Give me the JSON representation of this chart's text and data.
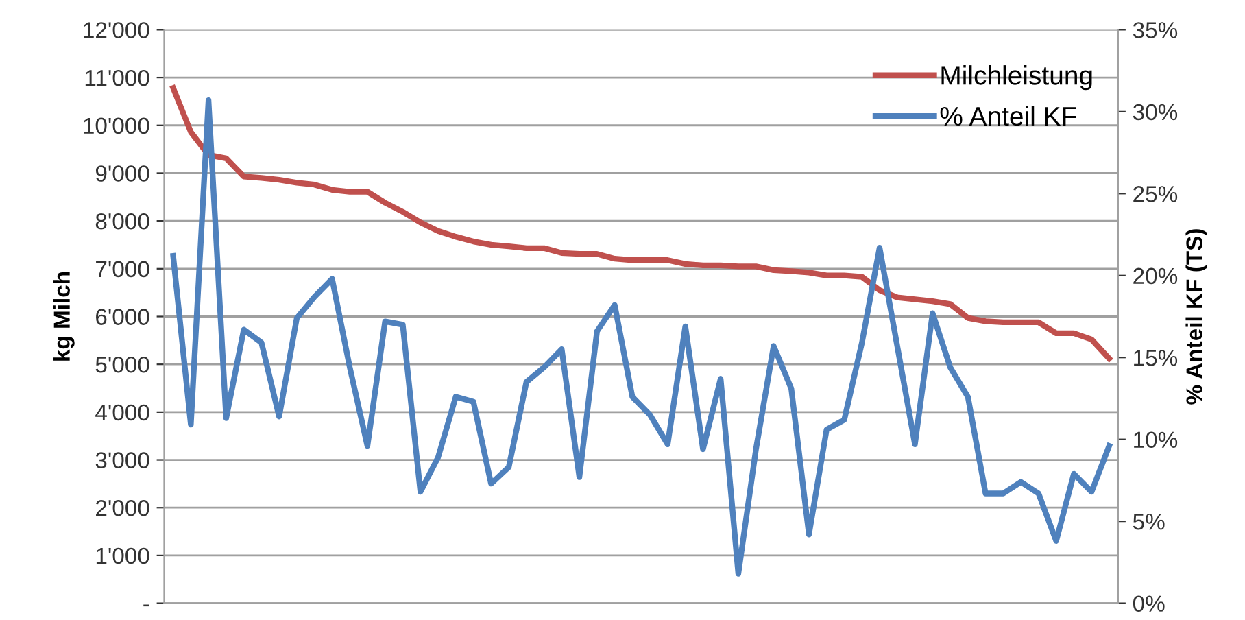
{
  "chart_data": {
    "type": "line",
    "categories": [
      null,
      null,
      null,
      null,
      null,
      null,
      null,
      null,
      null,
      null,
      null,
      null,
      null,
      null,
      null,
      null,
      null,
      null,
      null,
      null,
      null,
      null,
      null,
      null,
      null,
      null,
      null,
      null,
      null,
      null,
      null,
      null,
      null,
      null,
      null,
      null,
      null,
      null,
      null,
      null,
      null,
      null,
      null,
      null,
      null,
      null,
      null,
      null,
      null,
      null,
      null,
      null,
      null,
      null
    ],
    "series": [
      {
        "name": "Milchleistung",
        "color": "#c0504d",
        "values": [
          10780,
          9860,
          9380,
          9310,
          8930,
          8900,
          8860,
          8800,
          8760,
          8650,
          8610,
          8610,
          8380,
          8190,
          7970,
          7790,
          7670,
          7570,
          7500,
          7470,
          7430,
          7430,
          7330,
          7310,
          7310,
          7210,
          7180,
          7180,
          7180,
          7100,
          7070,
          7070,
          7050,
          7050,
          6970,
          6950,
          6920,
          6860,
          6860,
          6830,
          6550,
          6400,
          6360,
          6320,
          6260,
          5970,
          5900,
          5880,
          5880,
          5880,
          5650,
          5650,
          5520,
          5120
        ]
      },
      {
        "name": "% Anteil KF",
        "color": "#4f81bd",
        "axis": "y2",
        "values": [
          21.2,
          10.9,
          30.7,
          11.3,
          16.7,
          15.9,
          11.4,
          17.4,
          18.7,
          19.8,
          14.4,
          9.6,
          17.2,
          17.0,
          6.8,
          8.9,
          12.6,
          12.3,
          7.3,
          8.3,
          13.5,
          14.4,
          15.5,
          7.7,
          16.6,
          18.2,
          12.6,
          11.5,
          9.7,
          16.9,
          9.4,
          13.7,
          1.8,
          9.4,
          15.7,
          13.1,
          4.2,
          10.6,
          11.2,
          15.9,
          21.7,
          15.7,
          9.7,
          17.7,
          14.4,
          12.6,
          6.7,
          6.7,
          7.4,
          6.7,
          3.8,
          7.9,
          6.8,
          9.6
        ]
      }
    ],
    "ylabel": "kg Milch",
    "y2label": "% Anteil KF (TS)",
    "ylim": [
      0,
      12000
    ],
    "yticks": [
      {
        "value": 0,
        "label": "-"
      },
      {
        "value": 1000,
        "label": "1'000"
      },
      {
        "value": 2000,
        "label": "2'000"
      },
      {
        "value": 3000,
        "label": "3'000"
      },
      {
        "value": 4000,
        "label": "4'000"
      },
      {
        "value": 5000,
        "label": "5'000"
      },
      {
        "value": 6000,
        "label": "6'000"
      },
      {
        "value": 7000,
        "label": "7'000"
      },
      {
        "value": 8000,
        "label": "8'000"
      },
      {
        "value": 9000,
        "label": "9'000"
      },
      {
        "value": 10000,
        "label": "10'000"
      },
      {
        "value": 11000,
        "label": "11'000"
      },
      {
        "value": 12000,
        "label": "12'000"
      }
    ],
    "y2lim": [
      0,
      35
    ],
    "y2ticks": [
      {
        "value": 0,
        "label": "0%"
      },
      {
        "value": 5,
        "label": "5%"
      },
      {
        "value": 10,
        "label": "10%"
      },
      {
        "value": 15,
        "label": "15%"
      },
      {
        "value": 20,
        "label": "20%"
      },
      {
        "value": 25,
        "label": "25%"
      },
      {
        "value": 30,
        "label": "30%"
      },
      {
        "value": 35,
        "label": "35%"
      }
    ],
    "grid": "y",
    "legend": "top right",
    "marker": "none",
    "line_style": "solid"
  }
}
